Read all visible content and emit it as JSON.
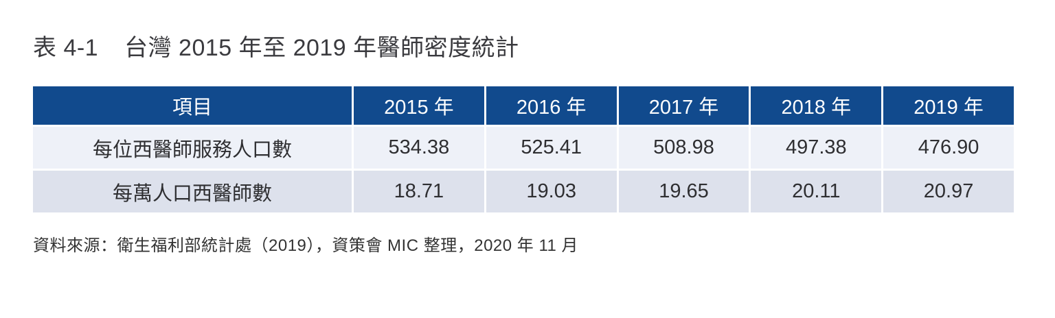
{
  "title": {
    "label": "表 4-1",
    "text": "台灣 2015 年至 2019 年醫師密度統計"
  },
  "table": {
    "columns": [
      "項目",
      "2015 年",
      "2016 年",
      "2017 年",
      "2018 年",
      "2019 年"
    ],
    "rows": [
      {
        "item": "每位西醫師服務人口數",
        "values": [
          "534.38",
          "525.41",
          "508.98",
          "497.38",
          "476.90"
        ]
      },
      {
        "item": "每萬人口西醫師數",
        "values": [
          "18.71",
          "19.03",
          "19.65",
          "20.11",
          "20.97"
        ]
      }
    ]
  },
  "source": "資料來源：衛生福利部統計處（2019），資策會 MIC 整理，2020 年 11 月",
  "colors": {
    "header_bg": "#114a8d",
    "header_text": "#ffffff",
    "row_light_bg": "#eef1f8",
    "row_dark_bg": "#dde1ec",
    "body_text": "#2e2e31",
    "title_text": "#3a3a3e",
    "source_text": "#333333"
  }
}
